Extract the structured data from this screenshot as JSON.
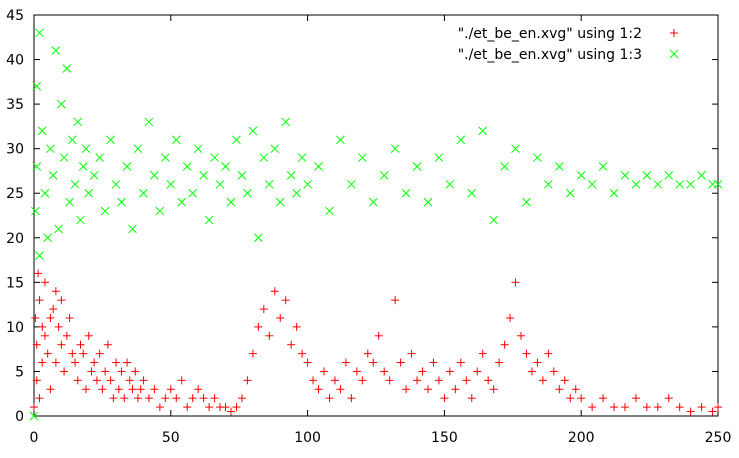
{
  "chart_data": {
    "type": "scatter",
    "title": "",
    "xlabel": "",
    "ylabel": "",
    "xlim": [
      0,
      250
    ],
    "ylim": [
      0,
      45
    ],
    "xticks": [
      0,
      50,
      100,
      150,
      200,
      250
    ],
    "yticks": [
      0,
      5,
      10,
      15,
      20,
      25,
      30,
      35,
      40,
      45
    ],
    "grid": false,
    "legend_position": "top-right",
    "series": [
      {
        "name": "\"./et_be_en.xvg\" using 1:2",
        "marker": "+",
        "color": "#ff0000",
        "points": [
          [
            0,
            1
          ],
          [
            0.5,
            11
          ],
          [
            1,
            4
          ],
          [
            1,
            8
          ],
          [
            1.5,
            16
          ],
          [
            2,
            2
          ],
          [
            2,
            13
          ],
          [
            3,
            6
          ],
          [
            3,
            10
          ],
          [
            4,
            9
          ],
          [
            4,
            15
          ],
          [
            5,
            7
          ],
          [
            6,
            3
          ],
          [
            6,
            11
          ],
          [
            7,
            12
          ],
          [
            8,
            6
          ],
          [
            8,
            14
          ],
          [
            9,
            10
          ],
          [
            10,
            8
          ],
          [
            10,
            13
          ],
          [
            11,
            5
          ],
          [
            12,
            9
          ],
          [
            13,
            11
          ],
          [
            14,
            7
          ],
          [
            15,
            6
          ],
          [
            16,
            4
          ],
          [
            17,
            8
          ],
          [
            18,
            7
          ],
          [
            19,
            3
          ],
          [
            20,
            9
          ],
          [
            21,
            5
          ],
          [
            22,
            6
          ],
          [
            23,
            4
          ],
          [
            24,
            7
          ],
          [
            25,
            3
          ],
          [
            26,
            5
          ],
          [
            27,
            8
          ],
          [
            28,
            4
          ],
          [
            29,
            2
          ],
          [
            30,
            6
          ],
          [
            31,
            3
          ],
          [
            32,
            5
          ],
          [
            33,
            2
          ],
          [
            34,
            6
          ],
          [
            35,
            4
          ],
          [
            36,
            3
          ],
          [
            37,
            5
          ],
          [
            38,
            2
          ],
          [
            39,
            3
          ],
          [
            40,
            4
          ],
          [
            42,
            2
          ],
          [
            44,
            3
          ],
          [
            46,
            1
          ],
          [
            48,
            2
          ],
          [
            50,
            3
          ],
          [
            52,
            2
          ],
          [
            54,
            4
          ],
          [
            56,
            1
          ],
          [
            58,
            2
          ],
          [
            60,
            3
          ],
          [
            62,
            2
          ],
          [
            64,
            1
          ],
          [
            66,
            2
          ],
          [
            68,
            1
          ],
          [
            70,
            1
          ],
          [
            72,
            0.5
          ],
          [
            74,
            1
          ],
          [
            76,
            2
          ],
          [
            78,
            4
          ],
          [
            80,
            7
          ],
          [
            82,
            10
          ],
          [
            84,
            12
          ],
          [
            86,
            9
          ],
          [
            88,
            14
          ],
          [
            90,
            11
          ],
          [
            92,
            13
          ],
          [
            94,
            8
          ],
          [
            96,
            10
          ],
          [
            98,
            7
          ],
          [
            100,
            6
          ],
          [
            102,
            4
          ],
          [
            104,
            3
          ],
          [
            106,
            5
          ],
          [
            108,
            2
          ],
          [
            110,
            4
          ],
          [
            112,
            3
          ],
          [
            114,
            6
          ],
          [
            116,
            2
          ],
          [
            118,
            5
          ],
          [
            120,
            4
          ],
          [
            122,
            7
          ],
          [
            124,
            6
          ],
          [
            126,
            9
          ],
          [
            128,
            5
          ],
          [
            130,
            4
          ],
          [
            132,
            13
          ],
          [
            134,
            6
          ],
          [
            136,
            3
          ],
          [
            138,
            7
          ],
          [
            140,
            4
          ],
          [
            142,
            5
          ],
          [
            144,
            3
          ],
          [
            146,
            6
          ],
          [
            148,
            4
          ],
          [
            150,
            2
          ],
          [
            152,
            5
          ],
          [
            154,
            3
          ],
          [
            156,
            6
          ],
          [
            158,
            4
          ],
          [
            160,
            2
          ],
          [
            162,
            5
          ],
          [
            164,
            7
          ],
          [
            166,
            4
          ],
          [
            168,
            3
          ],
          [
            170,
            6
          ],
          [
            172,
            8
          ],
          [
            174,
            11
          ],
          [
            176,
            15
          ],
          [
            178,
            9
          ],
          [
            180,
            7
          ],
          [
            182,
            5
          ],
          [
            184,
            6
          ],
          [
            186,
            4
          ],
          [
            188,
            7
          ],
          [
            190,
            5
          ],
          [
            192,
            3
          ],
          [
            194,
            4
          ],
          [
            196,
            2
          ],
          [
            198,
            3
          ],
          [
            200,
            2
          ],
          [
            204,
            1
          ],
          [
            208,
            2
          ],
          [
            212,
            1
          ],
          [
            216,
            1
          ],
          [
            220,
            2
          ],
          [
            224,
            1
          ],
          [
            228,
            1
          ],
          [
            232,
            2
          ],
          [
            236,
            1
          ],
          [
            240,
            0.5
          ],
          [
            244,
            1
          ],
          [
            248,
            0.5
          ],
          [
            250,
            1
          ]
        ]
      },
      {
        "name": "\"./et_be_en.xvg\" using 1:3",
        "marker": "x",
        "color": "#00ff00",
        "points": [
          [
            0,
            0
          ],
          [
            0.5,
            23
          ],
          [
            1,
            37
          ],
          [
            1,
            28
          ],
          [
            2,
            43
          ],
          [
            2,
            18
          ],
          [
            3,
            32
          ],
          [
            4,
            25
          ],
          [
            5,
            20
          ],
          [
            6,
            30
          ],
          [
            7,
            27
          ],
          [
            8,
            41
          ],
          [
            9,
            21
          ],
          [
            10,
            35
          ],
          [
            11,
            29
          ],
          [
            12,
            39
          ],
          [
            13,
            24
          ],
          [
            14,
            31
          ],
          [
            15,
            26
          ],
          [
            16,
            33
          ],
          [
            17,
            22
          ],
          [
            18,
            28
          ],
          [
            19,
            30
          ],
          [
            20,
            25
          ],
          [
            22,
            27
          ],
          [
            24,
            29
          ],
          [
            26,
            23
          ],
          [
            28,
            31
          ],
          [
            30,
            26
          ],
          [
            32,
            24
          ],
          [
            34,
            28
          ],
          [
            36,
            21
          ],
          [
            38,
            30
          ],
          [
            40,
            25
          ],
          [
            42,
            33
          ],
          [
            44,
            27
          ],
          [
            46,
            23
          ],
          [
            48,
            29
          ],
          [
            50,
            26
          ],
          [
            52,
            31
          ],
          [
            54,
            24
          ],
          [
            56,
            28
          ],
          [
            58,
            25
          ],
          [
            60,
            30
          ],
          [
            62,
            27
          ],
          [
            64,
            22
          ],
          [
            66,
            29
          ],
          [
            68,
            26
          ],
          [
            70,
            28
          ],
          [
            72,
            24
          ],
          [
            74,
            31
          ],
          [
            76,
            27
          ],
          [
            78,
            25
          ],
          [
            80,
            32
          ],
          [
            82,
            20
          ],
          [
            84,
            29
          ],
          [
            86,
            26
          ],
          [
            88,
            30
          ],
          [
            90,
            24
          ],
          [
            92,
            33
          ],
          [
            94,
            27
          ],
          [
            96,
            25
          ],
          [
            98,
            29
          ],
          [
            100,
            26
          ],
          [
            104,
            28
          ],
          [
            108,
            23
          ],
          [
            112,
            31
          ],
          [
            116,
            26
          ],
          [
            120,
            29
          ],
          [
            124,
            24
          ],
          [
            128,
            27
          ],
          [
            132,
            30
          ],
          [
            136,
            25
          ],
          [
            140,
            28
          ],
          [
            144,
            24
          ],
          [
            148,
            29
          ],
          [
            152,
            26
          ],
          [
            156,
            31
          ],
          [
            160,
            25
          ],
          [
            164,
            32
          ],
          [
            168,
            22
          ],
          [
            172,
            28
          ],
          [
            176,
            30
          ],
          [
            180,
            24
          ],
          [
            184,
            29
          ],
          [
            188,
            26
          ],
          [
            192,
            28
          ],
          [
            196,
            25
          ],
          [
            200,
            27
          ],
          [
            204,
            26
          ],
          [
            208,
            28
          ],
          [
            212,
            25
          ],
          [
            216,
            27
          ],
          [
            220,
            26
          ],
          [
            224,
            27
          ],
          [
            228,
            26
          ],
          [
            232,
            27
          ],
          [
            236,
            26
          ],
          [
            240,
            26
          ],
          [
            244,
            27
          ],
          [
            248,
            26
          ],
          [
            250,
            26
          ]
        ]
      }
    ]
  }
}
